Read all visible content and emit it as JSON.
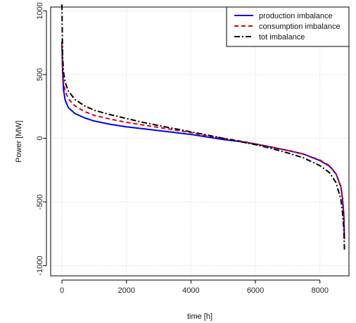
{
  "chart_data": {
    "type": "line",
    "title": "",
    "xlabel": "time [h]",
    "ylabel": "Power [MW]",
    "xlim": [
      -350,
      8900
    ],
    "ylim": [
      -1080,
      1030
    ],
    "x_ticks": [
      0,
      2000,
      4000,
      6000,
      8000
    ],
    "y_ticks": [
      -1000,
      -500,
      0,
      500,
      1000
    ],
    "x_tick_labels": [
      "0",
      "2000",
      "4000",
      "6000",
      "8000"
    ],
    "y_tick_labels": [
      "-1000",
      "-500",
      "0",
      "500",
      "1000"
    ],
    "grid": true,
    "legend_position": "top-right",
    "series": [
      {
        "name": "production imbalance",
        "color": "#0000ee",
        "dash": "solid",
        "x": [
          0,
          20,
          50,
          100,
          200,
          400,
          700,
          1000,
          1500,
          2000,
          2500,
          3000,
          3500,
          4000,
          4500,
          5000,
          5500,
          6000,
          6500,
          7000,
          7500,
          8000,
          8300,
          8500,
          8650,
          8700,
          8740,
          8760
        ],
        "y": [
          760,
          520,
          380,
          300,
          240,
          195,
          160,
          135,
          110,
          90,
          75,
          60,
          45,
          30,
          10,
          -10,
          -25,
          -45,
          -70,
          -95,
          -125,
          -175,
          -220,
          -280,
          -380,
          -470,
          -600,
          -790
        ]
      },
      {
        "name": "consumption imbalance",
        "color": "#dd0000",
        "dash": "6,4",
        "x": [
          0,
          20,
          50,
          100,
          200,
          400,
          700,
          1000,
          1500,
          2000,
          2500,
          3000,
          3500,
          4000,
          4500,
          5000,
          5500,
          6000,
          6500,
          7000,
          7500,
          8000,
          8300,
          8500,
          8650,
          8700,
          8740,
          8760
        ],
        "y": [
          740,
          560,
          440,
          370,
          310,
          255,
          210,
          180,
          150,
          125,
          105,
          85,
          65,
          45,
          20,
          0,
          -20,
          -45,
          -70,
          -95,
          -125,
          -170,
          -215,
          -280,
          -380,
          -480,
          -620,
          -800
        ]
      },
      {
        "name": "tot imbalance",
        "color": "#000000",
        "dash": "8,3,2,3",
        "x": [
          0,
          20,
          50,
          100,
          200,
          400,
          700,
          1000,
          1500,
          2000,
          2500,
          3000,
          3500,
          4000,
          4500,
          5000,
          5500,
          6000,
          6500,
          7000,
          7500,
          8000,
          8300,
          8500,
          8650,
          8700,
          8740,
          8760
        ],
        "y": [
          1050,
          640,
          520,
          440,
          370,
          305,
          255,
          220,
          185,
          155,
          125,
          100,
          75,
          50,
          25,
          0,
          -25,
          -50,
          -80,
          -115,
          -155,
          -215,
          -270,
          -350,
          -480,
          -580,
          -720,
          -880
        ]
      }
    ]
  }
}
